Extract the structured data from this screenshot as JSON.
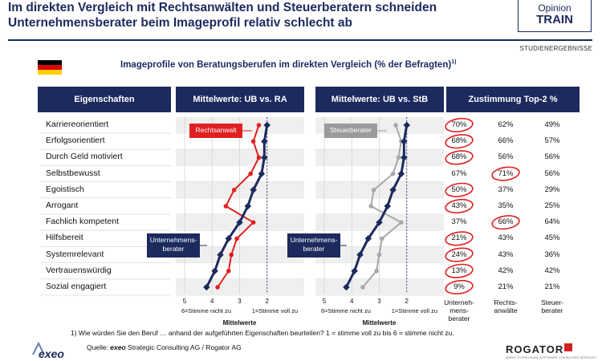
{
  "headline": "Im direkten Vergleich mit Rechtsanwälten und Steuerberatern schneiden Unternehmensberater beim Imageprofil relativ schlecht ab",
  "brand": {
    "line1": "Opinion",
    "line2": "TRAIN"
  },
  "tag": "STUDIENERGEBNISSE",
  "subtitle": "Imageprofile von Beratungsberufen im direkten Vergleich (% der Befragten)",
  "subtitle_sup": "1)",
  "colors": {
    "navy": "#1c2a5e",
    "red": "#e02020",
    "gray": "#a8a8a8",
    "flag": [
      "#000000",
      "#dd0000",
      "#ffce00"
    ]
  },
  "headers": {
    "attributes": "Eigenschaften",
    "ub_ra": "Mittelwerte: UB vs. RA",
    "ub_stb": "Mittelwerte: UB vs. StB",
    "top2": "Zustimmung Top-2 %"
  },
  "chart_data": {
    "type": "line",
    "categories": [
      "Karriereorientiert",
      "Erfolgsorientiert",
      "Durch Geld motiviert",
      "Selbstbewusst",
      "Egoistisch",
      "Arrogant",
      "Fachlich kompetent",
      "Hilfsbereit",
      "Systemrelevant",
      "Vertrauenswürdig",
      "Sozial engagiert"
    ],
    "x_axis": {
      "ticks": [
        "5",
        "4",
        "3",
        "2"
      ],
      "range": [
        5,
        1
      ],
      "left_label": "6=Stimme nicht zu",
      "right_label": "1=Stimme voll zu",
      "title": "Mittelwerte"
    },
    "panels": [
      {
        "series": [
          {
            "name": "Unternehmensberater",
            "values": [
              2.0,
              2.1,
              2.1,
              2.2,
              2.5,
              2.7,
              3.0,
              3.4,
              3.7,
              3.9,
              4.2
            ]
          },
          {
            "name": "Rechtsanwalt",
            "values": [
              2.3,
              2.5,
              2.3,
              2.6,
              3.2,
              3.5,
              2.5,
              3.1,
              3.3,
              3.4,
              3.8
            ]
          }
        ]
      },
      {
        "series": [
          {
            "name": "Unternehmensberater",
            "values": [
              2.0,
              2.1,
              2.1,
              2.2,
              2.5,
              2.7,
              3.0,
              3.4,
              3.7,
              3.9,
              4.2
            ]
          },
          {
            "name": "Steuerberater",
            "values": [
              2.4,
              2.2,
              2.3,
              2.5,
              3.2,
              3.3,
              2.2,
              2.9,
              3.0,
              3.1,
              3.6
            ]
          }
        ]
      }
    ],
    "top2": {
      "columns": [
        {
          "label": [
            "Unterneh-",
            "mens-",
            "berater"
          ],
          "values": [
            "70%",
            "68%",
            "68%",
            "67%",
            "50%",
            "43%",
            "37%",
            "21%",
            "24%",
            "13%",
            "9%"
          ],
          "circled": [
            true,
            true,
            true,
            false,
            true,
            true,
            false,
            true,
            true,
            true,
            true
          ]
        },
        {
          "label": [
            "Rechts-",
            "anwälte"
          ],
          "values": [
            "62%",
            "66%",
            "56%",
            "71%",
            "37%",
            "35%",
            "66%",
            "43%",
            "43%",
            "42%",
            "21%"
          ],
          "circled": [
            false,
            false,
            false,
            true,
            false,
            false,
            true,
            false,
            false,
            false,
            false
          ]
        },
        {
          "label": [
            "Steuer-",
            "berater"
          ],
          "values": [
            "49%",
            "57%",
            "56%",
            "56%",
            "29%",
            "25%",
            "64%",
            "45%",
            "36%",
            "42%",
            "21%"
          ],
          "circled": [
            false,
            false,
            false,
            false,
            false,
            false,
            false,
            false,
            false,
            false,
            false
          ]
        }
      ]
    }
  },
  "callouts": {
    "ra": "Rechtsanwalt",
    "stb": "Steuerberater",
    "ub": [
      "Unternehmens-",
      "berater"
    ]
  },
  "footnote": "1)   Wie würden Sie den Beruf … anhand der aufgeführten Eigenschaften beurteilen? 1 = stimme voll zu bis 6 = stimme nicht zu.",
  "source": {
    "prefix": "Quelle: ",
    "bold": "exeo",
    "rest": " Strategic Consulting AG / Rogator AG"
  },
  "logos": {
    "exeo": "exeo",
    "rogator": "ROGATOR",
    "rogator_sub": "MARKT FORSCHUNG SOFTWARE CONSULTING SERVICES"
  }
}
